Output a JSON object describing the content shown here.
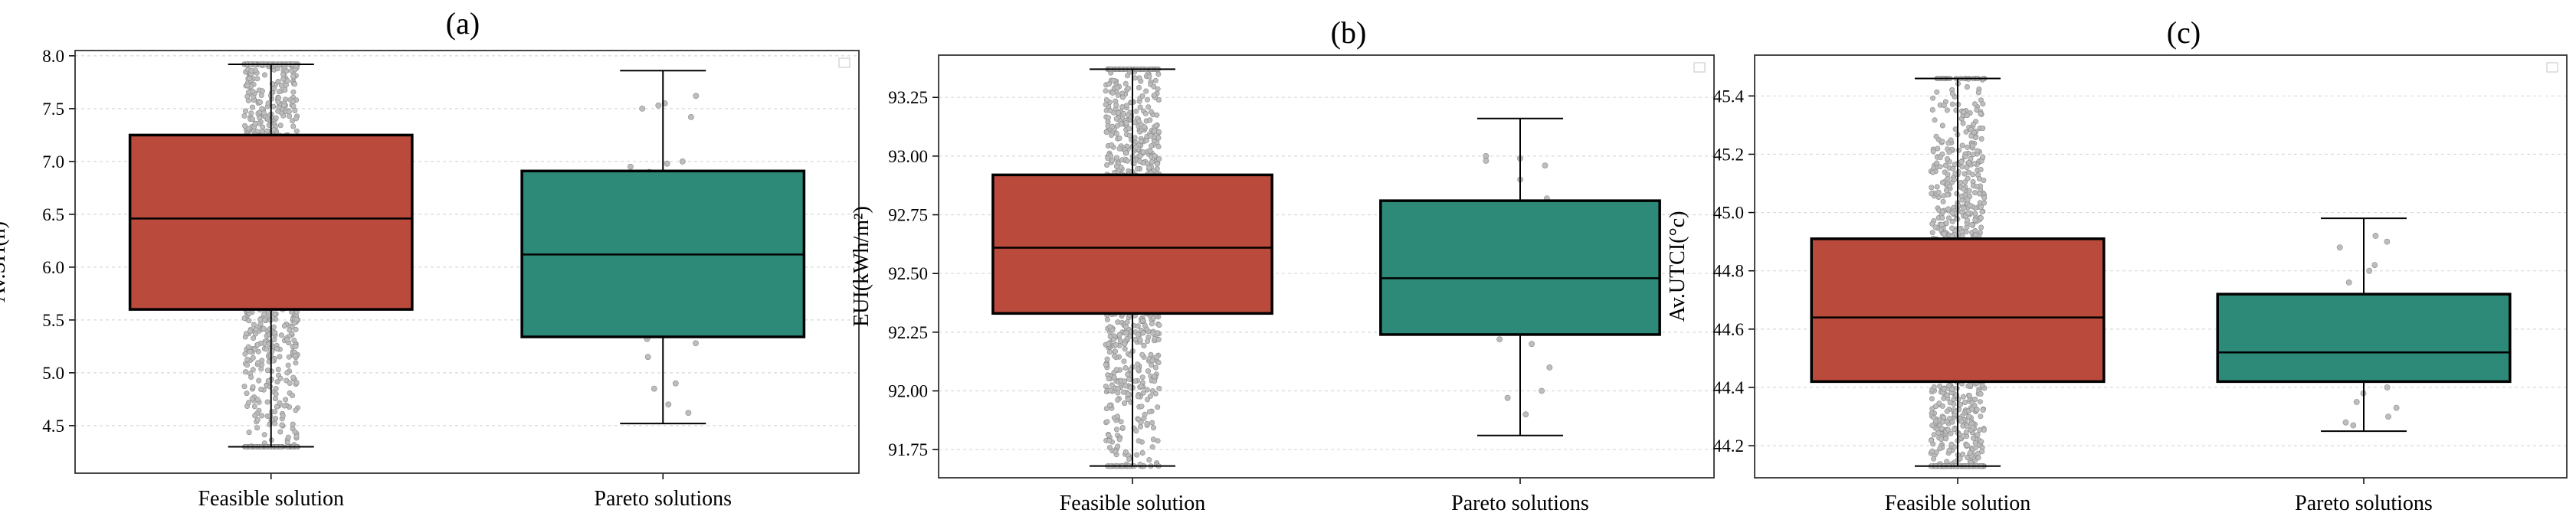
{
  "chart_data": [
    {
      "panel": "(a)",
      "type": "box",
      "title": "(a)",
      "ylabel": "Av.SH(h)",
      "xlabel": "",
      "categories": [
        "Feasible solution",
        "Pareto solutions"
      ],
      "ylim": [
        4.05,
        8.05
      ],
      "yticks": [
        4.5,
        5.0,
        5.5,
        6.0,
        6.5,
        7.0,
        7.5,
        8.0
      ],
      "ytick_labels": [
        "4.5",
        "5.0",
        "5.5",
        "6.0",
        "6.5",
        "7.0",
        "7.5",
        "8.0"
      ],
      "grid": true,
      "series": [
        {
          "name": "Feasible solution",
          "min": 4.3,
          "q1": 5.6,
          "median": 6.46,
          "q3": 7.25,
          "max": 7.92,
          "color": "#b94a3c",
          "n_points": 1200,
          "sparse_points": []
        },
        {
          "name": "Pareto solutions",
          "min": 4.52,
          "q1": 5.34,
          "median": 6.12,
          "q3": 6.91,
          "max": 7.86,
          "color": "#2e8a78",
          "n_points": 0,
          "sparse_points": [
            7.62,
            7.55,
            7.53,
            7.5,
            7.42,
            7.0,
            6.98,
            6.95,
            6.9,
            5.32,
            5.28,
            5.15,
            4.9,
            4.85,
            4.7,
            4.62
          ]
        }
      ]
    },
    {
      "panel": "(b)",
      "type": "box",
      "title": "(b)",
      "ylabel": "EUI(kWh/m²)",
      "xlabel": "",
      "categories": [
        "Feasible solution",
        "Pareto solutions"
      ],
      "ylim": [
        91.63,
        93.43
      ],
      "yticks": [
        91.75,
        92.0,
        92.25,
        92.5,
        92.75,
        93.0,
        93.25
      ],
      "ytick_labels": [
        "91.75",
        "92.00",
        "92.25",
        "92.50",
        "92.75",
        "93.00",
        "93.25"
      ],
      "grid": true,
      "series": [
        {
          "name": "Feasible solution",
          "min": 91.68,
          "q1": 92.33,
          "median": 92.61,
          "q3": 92.92,
          "max": 93.37,
          "color": "#b94a3c",
          "n_points": 1200,
          "sparse_points": []
        },
        {
          "name": "Pareto solutions",
          "min": 91.81,
          "q1": 92.24,
          "median": 92.48,
          "q3": 92.81,
          "max": 93.16,
          "color": "#2e8a78",
          "n_points": 0,
          "sparse_points": [
            93.0,
            92.99,
            92.98,
            92.96,
            92.9,
            92.82,
            92.3,
            92.25,
            92.22,
            92.2,
            92.1,
            92.0,
            91.97,
            91.9
          ]
        }
      ]
    },
    {
      "panel": "(c)",
      "type": "box",
      "title": "(c)",
      "ylabel": "Av.UTCI(°c)",
      "xlabel": "",
      "categories": [
        "Feasible solution",
        "Pareto solutions"
      ],
      "ylim": [
        44.09,
        45.54
      ],
      "yticks": [
        44.2,
        44.4,
        44.6,
        44.8,
        45.0,
        45.2,
        45.4
      ],
      "ytick_labels": [
        "44.2",
        "44.4",
        "44.6",
        "44.8",
        "45.0",
        "45.2",
        "45.4"
      ],
      "grid": true,
      "series": [
        {
          "name": "Feasible solution",
          "min": 44.13,
          "q1": 44.42,
          "median": 44.64,
          "q3": 44.91,
          "max": 45.46,
          "color": "#b94a3c",
          "n_points": 1200,
          "sparse_points": []
        },
        {
          "name": "Pareto solutions",
          "min": 44.25,
          "q1": 44.42,
          "median": 44.52,
          "q3": 44.72,
          "max": 44.98,
          "color": "#2e8a78",
          "n_points": 0,
          "sparse_points": [
            44.92,
            44.9,
            44.88,
            44.82,
            44.8,
            44.76,
            44.4,
            44.38,
            44.35,
            44.33,
            44.3,
            44.28,
            44.27
          ]
        }
      ]
    }
  ]
}
